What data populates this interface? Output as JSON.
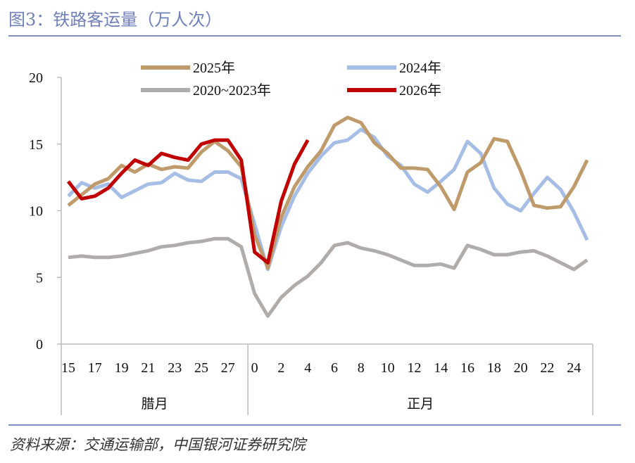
{
  "title": "图3：铁路客运量（万人次）",
  "source": "资料来源：交通运输部，中国银河证券研究院",
  "chart_data": {
    "type": "line",
    "title": "",
    "xlabel": "",
    "ylabel": "",
    "ylim": [
      0,
      20
    ],
    "yticks": [
      0,
      5,
      10,
      15,
      20
    ],
    "grid": false,
    "legend_position": "top",
    "categories": [
      "15",
      "16",
      "17",
      "18",
      "19",
      "20",
      "21",
      "22",
      "23",
      "24",
      "25",
      "26",
      "27",
      "28",
      "0",
      "1",
      "2",
      "3",
      "4",
      "5",
      "6",
      "7",
      "8",
      "9",
      "10",
      "11",
      "12",
      "13",
      "14",
      "15",
      "16",
      "17",
      "18",
      "19",
      "20",
      "21",
      "22",
      "23",
      "24",
      "25"
    ],
    "tick_labels": [
      "15",
      "17",
      "19",
      "21",
      "23",
      "25",
      "27",
      "0",
      "2",
      "4",
      "6",
      "8",
      "10",
      "12",
      "14",
      "16",
      "18",
      "20",
      "22",
      "24"
    ],
    "groups": [
      {
        "label": "腊月",
        "count": 14
      },
      {
        "label": "正月",
        "count": 26
      }
    ],
    "series": [
      {
        "name": "2025年",
        "color": "#bf9a6a",
        "values": [
          10.4,
          11.2,
          12.0,
          12.4,
          13.4,
          12.9,
          13.5,
          13.1,
          13.3,
          13.2,
          14.4,
          15.2,
          14.5,
          13.3,
          8.2,
          5.7,
          9.5,
          11.8,
          13.3,
          14.5,
          16.4,
          17.0,
          16.6,
          15.1,
          14.3,
          13.2,
          13.2,
          13.1,
          11.8,
          10.1,
          12.9,
          13.6,
          15.4,
          15.2,
          13.0,
          10.4,
          10.2,
          10.3,
          11.8,
          13.8
        ]
      },
      {
        "name": "2024年",
        "color": "#a6bde6",
        "values": [
          11.1,
          12.1,
          11.7,
          12.0,
          11.0,
          11.5,
          12.0,
          12.1,
          12.8,
          12.3,
          12.2,
          12.9,
          12.9,
          12.4,
          9.0,
          5.6,
          8.8,
          11.1,
          12.8,
          14.1,
          15.1,
          15.3,
          16.1,
          15.5,
          14.1,
          13.4,
          12.0,
          11.4,
          12.2,
          13.1,
          15.2,
          14.3,
          11.7,
          10.5,
          10.0,
          11.3,
          12.5,
          11.6,
          9.9,
          7.8
        ]
      },
      {
        "name": "2020~2023年",
        "color": "#b0acac",
        "values": [
          6.5,
          6.6,
          6.5,
          6.5,
          6.6,
          6.8,
          7.0,
          7.3,
          7.4,
          7.6,
          7.7,
          7.9,
          7.9,
          7.3,
          3.8,
          2.1,
          3.5,
          4.4,
          5.1,
          6.1,
          7.4,
          7.6,
          7.2,
          7.0,
          6.7,
          6.3,
          5.9,
          5.9,
          6.0,
          5.7,
          7.4,
          7.1,
          6.7,
          6.7,
          6.9,
          7.0,
          6.6,
          6.1,
          5.6,
          6.3
        ]
      },
      {
        "name": "2026年",
        "color": "#c00000",
        "values": [
          12.2,
          10.9,
          11.1,
          11.7,
          12.8,
          13.8,
          13.4,
          14.3,
          14.0,
          13.8,
          15.0,
          15.3,
          15.3,
          13.8,
          6.9,
          6.1,
          10.7,
          13.5,
          15.3,
          null,
          null,
          null,
          null,
          null,
          null,
          null,
          null,
          null,
          null,
          null,
          null,
          null,
          null,
          null,
          null,
          null,
          null,
          null,
          null,
          null
        ]
      }
    ]
  }
}
